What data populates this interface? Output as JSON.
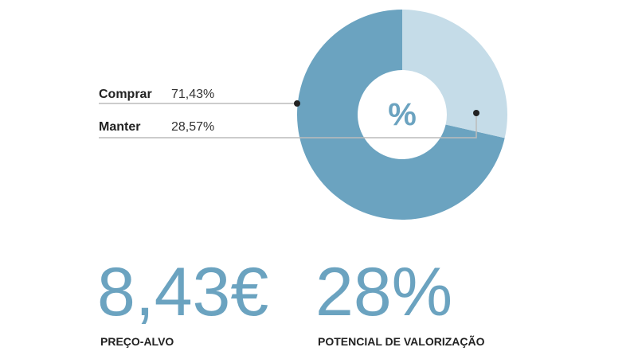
{
  "chart_data": {
    "type": "pie",
    "donut": true,
    "center_label": "%",
    "categories": [
      "Comprar",
      "Manter"
    ],
    "values": [
      71.43,
      28.57
    ],
    "value_labels": [
      "71,43%",
      "28,57%"
    ],
    "colors": [
      "#6ba3c0",
      "#c5dce8"
    ]
  },
  "stats": [
    {
      "value": "8,43€",
      "label": "PREÇO-ALVO"
    },
    {
      "value": "28%",
      "label": "POTENCIAL DE VALORIZAÇÃO"
    }
  ]
}
